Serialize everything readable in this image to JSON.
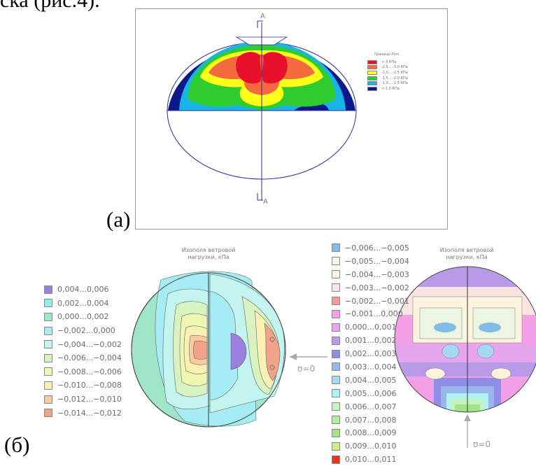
{
  "top_caption": "ска (рис.4).",
  "panel_a": {
    "label": "(а)",
    "section_mark_top": "A",
    "section_mark_bottom": "A",
    "legend_title": "Границы Рcm",
    "legend": [
      {
        "label": "<-3 КПа",
        "color": "#e8102a"
      },
      {
        "label": "-2,5....-3,0 КПа",
        "color": "#f36a3c"
      },
      {
        "label": "-2,0....-2,5 КПа",
        "color": "#ffff1a"
      },
      {
        "label": "-1,5....-2,0 КПа",
        "color": "#2ecc2e"
      },
      {
        "label": "-1,0....-1,5 КПа",
        "color": "#19b4e6"
      },
      {
        "label": "<-1,0 КПа",
        "color": "#0a1a8c"
      }
    ]
  },
  "panel_b": {
    "label": "(б)",
    "left_title_line1": "Изополя ветровой",
    "left_title_line2": "нагрузки, кПа",
    "right_title_line1": "Изополя ветровой",
    "right_title_line2": "нагрузки, кПа",
    "wind_label_side": "ʊ=0",
    "wind_label_bottom": "ʊ=0",
    "legend_left": [
      {
        "label": "0,004...0,006",
        "color": "#9a7ee0"
      },
      {
        "label": "0,002...0,004",
        "color": "#8ef0e4"
      },
      {
        "label": "0,000...0,002",
        "color": "#9fe6c8"
      },
      {
        "label": "−0,002...0,000",
        "color": "#a6ecf4"
      },
      {
        "label": "−0,004...−0,002",
        "color": "#c4f4f0"
      },
      {
        "label": "−0,006...−0,004",
        "color": "#d8f3c0"
      },
      {
        "label": "−0,008...−0,006",
        "color": "#eef6b0"
      },
      {
        "label": "−0,010...−0,008",
        "color": "#fbf0b4"
      },
      {
        "label": "−0,012...−0,010",
        "color": "#f8caa0"
      },
      {
        "label": "−0,014...−0,012",
        "color": "#f3a28a"
      }
    ],
    "legend_right": [
      {
        "label": "−0,006...−0,005",
        "color": "#80bce6"
      },
      {
        "label": "−0,005...−0,004",
        "color": "#ecf6e2"
      },
      {
        "label": "−0,004...−0,003",
        "color": "#fbf3dc"
      },
      {
        "label": "−0,003...−0,002",
        "color": "#f9e4e0"
      },
      {
        "label": "−0,002...−0,001",
        "color": "#f29aa0"
      },
      {
        "label": "−0,001...0,000",
        "color": "#f3a0e8"
      },
      {
        "label": "0,000...0,001",
        "color": "#e6a6ee"
      },
      {
        "label": "0,001...0,002",
        "color": "#b89ae8"
      },
      {
        "label": "0,002...0,003",
        "color": "#8f8ee6"
      },
      {
        "label": "0,003...0,004",
        "color": "#9ab4ee"
      },
      {
        "label": "0,004...0,005",
        "color": "#a6d8f2"
      },
      {
        "label": "0,005...0,006",
        "color": "#aef4f4"
      },
      {
        "label": "0,006...0,007",
        "color": "#c4f2c0"
      },
      {
        "label": "0,007...0,008",
        "color": "#b6ec9e"
      },
      {
        "label": "0,008...0,009",
        "color": "#a4e486"
      },
      {
        "label": "0,009...0,010",
        "color": "#ccf088"
      },
      {
        "label": "0,010...0,011",
        "color": "#e8341a"
      }
    ]
  }
}
